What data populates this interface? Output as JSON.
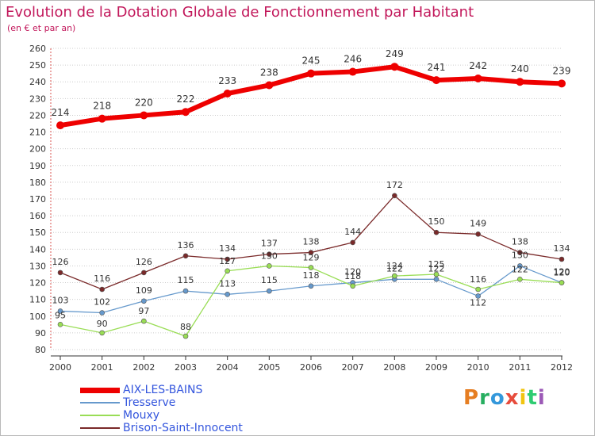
{
  "title": "Evolution de la Dotation Globale de Fonctionnement par Habitant",
  "subtitle": "(en € et par an)",
  "logo": {
    "text": "Proxiti",
    "colors": [
      "#e67e22",
      "#27ae60",
      "#3498db",
      "#e74c3c",
      "#f1c40f",
      "#2ecc71",
      "#9b59b6"
    ]
  },
  "chart_data": {
    "type": "line",
    "title": "Evolution de la Dotation Globale de Fonctionnement par Habitant",
    "subtitle": "(en € et par an)",
    "xlabel": "",
    "ylabel": "",
    "categories": [
      "2000",
      "2001",
      "2002",
      "2003",
      "2004",
      "2005",
      "2006",
      "2007",
      "2008",
      "2009",
      "2010",
      "2011",
      "2012"
    ],
    "ylim": [
      80,
      260
    ],
    "yticks": [
      80,
      90,
      100,
      110,
      120,
      130,
      140,
      150,
      160,
      170,
      180,
      190,
      200,
      210,
      220,
      230,
      240,
      250,
      260
    ],
    "grid": "horizontal dotted",
    "legend_position": "bottom-left",
    "series": [
      {
        "name": "AIX-LES-BAINS",
        "color": "#ee0000",
        "values": [
          214,
          218,
          220,
          222,
          233,
          238,
          245,
          246,
          249,
          241,
          242,
          240,
          239
        ]
      },
      {
        "name": "Tresserve",
        "color": "#6699cc",
        "values": [
          103,
          102,
          109,
          115,
          113,
          115,
          118,
          120,
          122,
          122,
          112,
          130,
          120
        ]
      },
      {
        "name": "Mouxy",
        "color": "#99dd55",
        "values": [
          95,
          90,
          97,
          88,
          127,
          130,
          129,
          118,
          124,
          125,
          116,
          122,
          120
        ]
      },
      {
        "name": "Brison-Saint-Innocent",
        "color": "#7a2a2a",
        "values": [
          126,
          116,
          126,
          136,
          134,
          137,
          138,
          144,
          172,
          150,
          149,
          138,
          134
        ]
      }
    ]
  }
}
